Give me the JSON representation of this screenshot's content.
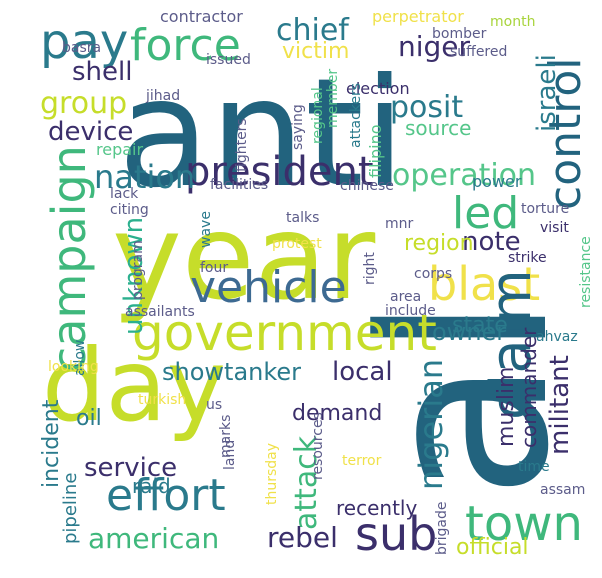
{
  "palette": {
    "navy": "#3b2f6b",
    "teal": "#2a7a8c",
    "deepteal": "#22637e",
    "green": "#3fb87c",
    "mint": "#55c68a",
    "lime": "#c6dd2a",
    "yellowgreen": "#a8d43c",
    "yellow": "#f0e14a",
    "seafoam": "#2bb08e",
    "blue": "#3d6a92",
    "slate": "#5c5c8a"
  },
  "words": [
    {
      "text": "al",
      "color": "deepteal",
      "rotated": true
    },
    {
      "text": "anti",
      "color": "deepteal",
      "rotated": false
    },
    {
      "text": "year",
      "color": "lime",
      "rotated": false
    },
    {
      "text": "day",
      "color": "lime",
      "rotated": false
    },
    {
      "text": "government",
      "color": "lime",
      "rotated": false
    },
    {
      "text": "campaign",
      "color": "green",
      "rotated": true
    },
    {
      "text": "vehicle",
      "color": "blue",
      "rotated": false
    },
    {
      "text": "blast",
      "color": "yellow",
      "rotated": false
    },
    {
      "text": "claim",
      "color": "deepteal",
      "rotated": true
    },
    {
      "text": "control",
      "color": "deepteal",
      "rotated": true
    },
    {
      "text": "effort",
      "color": "teal",
      "rotated": false
    },
    {
      "text": "town",
      "color": "green",
      "rotated": false
    },
    {
      "text": "sub",
      "color": "navy",
      "rotated": false
    },
    {
      "text": "pay",
      "color": "teal",
      "rotated": false
    },
    {
      "text": "force",
      "color": "green",
      "rotated": false
    },
    {
      "text": "president",
      "color": "navy",
      "rotated": false
    },
    {
      "text": "nation",
      "color": "teal",
      "rotated": false
    },
    {
      "text": "operation",
      "color": "mint",
      "rotated": false
    },
    {
      "text": "led",
      "color": "green",
      "rotated": false
    },
    {
      "text": "chief",
      "color": "teal",
      "rotated": false
    },
    {
      "text": "niger",
      "color": "navy",
      "rotated": false
    },
    {
      "text": "attack",
      "color": "green",
      "rotated": true
    },
    {
      "text": "nigerian",
      "color": "teal",
      "rotated": true
    },
    {
      "text": "american",
      "color": "green",
      "rotated": false
    },
    {
      "text": "rebel",
      "color": "navy",
      "rotated": false
    },
    {
      "text": "group",
      "color": "lime",
      "rotated": false
    },
    {
      "text": "device",
      "color": "navy",
      "rotated": false
    },
    {
      "text": "shell",
      "color": "navy",
      "rotated": false
    },
    {
      "text": "posit",
      "color": "teal",
      "rotated": false
    },
    {
      "text": "source",
      "color": "mint",
      "rotated": false
    },
    {
      "text": "israeli",
      "color": "teal",
      "rotated": true
    },
    {
      "text": "note",
      "color": "navy",
      "rotated": false
    },
    {
      "text": "region",
      "color": "lime",
      "rotated": false
    },
    {
      "text": "owner",
      "color": "teal",
      "rotated": false
    },
    {
      "text": "unknown",
      "color": "seafoam",
      "rotated": true
    },
    {
      "text": "showtanker",
      "color": "teal",
      "rotated": false
    },
    {
      "text": "local",
      "color": "navy",
      "rotated": false
    },
    {
      "text": "militant",
      "color": "navy",
      "rotated": true
    },
    {
      "text": "commander",
      "color": "navy",
      "rotated": true
    },
    {
      "text": "muslim",
      "color": "navy",
      "rotated": true
    },
    {
      "text": "service",
      "color": "navy",
      "rotated": false
    },
    {
      "text": "demand",
      "color": "navy",
      "rotated": false
    },
    {
      "text": "state",
      "color": "teal",
      "rotated": false
    },
    {
      "text": "official",
      "color": "lime",
      "rotated": false
    },
    {
      "text": "recently",
      "color": "navy",
      "rotated": false
    },
    {
      "text": "victim",
      "color": "yellow",
      "rotated": false
    },
    {
      "text": "incident",
      "color": "teal",
      "rotated": true
    },
    {
      "text": "oil",
      "color": "teal",
      "rotated": false
    },
    {
      "text": "pipeline",
      "color": "teal",
      "rotated": true
    },
    {
      "text": "raid",
      "color": "teal",
      "rotated": false
    },
    {
      "text": "contractor",
      "color": "slate",
      "rotated": false
    },
    {
      "text": "basra",
      "color": "slate",
      "rotated": false
    },
    {
      "text": "perpetrator",
      "color": "yellow",
      "rotated": false
    },
    {
      "text": "month",
      "color": "yellowgreen",
      "rotated": false
    },
    {
      "text": "bomber",
      "color": "slate",
      "rotated": false
    },
    {
      "text": "suffered",
      "color": "slate",
      "rotated": false
    },
    {
      "text": "issued",
      "color": "slate",
      "rotated": false
    },
    {
      "text": "jihad",
      "color": "slate",
      "rotated": false
    },
    {
      "text": "election",
      "color": "navy",
      "rotated": false
    },
    {
      "text": "member",
      "color": "mint",
      "rotated": true
    },
    {
      "text": "regional",
      "color": "mint",
      "rotated": true
    },
    {
      "text": "saying",
      "color": "slate",
      "rotated": true
    },
    {
      "text": "attackers",
      "color": "teal",
      "rotated": true
    },
    {
      "text": "repair",
      "color": "mint",
      "rotated": false
    },
    {
      "text": "fighters",
      "color": "slate",
      "rotated": true
    },
    {
      "text": "filipino",
      "color": "mint",
      "rotated": true
    },
    {
      "text": "power",
      "color": "teal",
      "rotated": false
    },
    {
      "text": "facilities",
      "color": "slate",
      "rotated": false
    },
    {
      "text": "chinese",
      "color": "slate",
      "rotated": false
    },
    {
      "text": "lack",
      "color": "slate",
      "rotated": false
    },
    {
      "text": "citing",
      "color": "slate",
      "rotated": false
    },
    {
      "text": "talks",
      "color": "slate",
      "rotated": false
    },
    {
      "text": "wave",
      "color": "teal",
      "rotated": true
    },
    {
      "text": "mnr",
      "color": "slate",
      "rotated": false
    },
    {
      "text": "torture",
      "color": "slate",
      "rotated": false
    },
    {
      "text": "visit",
      "color": "navy",
      "rotated": false
    },
    {
      "text": "strike",
      "color": "navy",
      "rotated": false
    },
    {
      "text": "protest",
      "color": "yellow",
      "rotated": false
    },
    {
      "text": "right",
      "color": "slate",
      "rotated": true
    },
    {
      "text": "corps",
      "color": "slate",
      "rotated": false
    },
    {
      "text": "program",
      "color": "slate",
      "rotated": true
    },
    {
      "text": "four",
      "color": "slate",
      "rotated": false
    },
    {
      "text": "assailants",
      "color": "slate",
      "rotated": false
    },
    {
      "text": "area",
      "color": "slate",
      "rotated": false
    },
    {
      "text": "include",
      "color": "slate",
      "rotated": false
    },
    {
      "text": "resistance",
      "color": "mint",
      "rotated": true
    },
    {
      "text": "allow",
      "color": "teal",
      "rotated": true
    },
    {
      "text": "ahvaz",
      "color": "teal",
      "rotated": false
    },
    {
      "text": "looking",
      "color": "yellow",
      "rotated": false
    },
    {
      "text": "turkish",
      "color": "yellow",
      "rotated": false
    },
    {
      "text": "us",
      "color": "slate",
      "rotated": false
    },
    {
      "text": "land",
      "color": "slate",
      "rotated": true
    },
    {
      "text": "marks",
      "color": "slate",
      "rotated": true
    },
    {
      "text": "thursday",
      "color": "yellow",
      "rotated": true
    },
    {
      "text": "resources",
      "color": "slate",
      "rotated": true
    },
    {
      "text": "terror",
      "color": "yellow",
      "rotated": false
    },
    {
      "text": "time",
      "color": "teal",
      "rotated": false
    },
    {
      "text": "assam",
      "color": "slate",
      "rotated": false
    },
    {
      "text": "brigade",
      "color": "slate",
      "rotated": true
    }
  ]
}
